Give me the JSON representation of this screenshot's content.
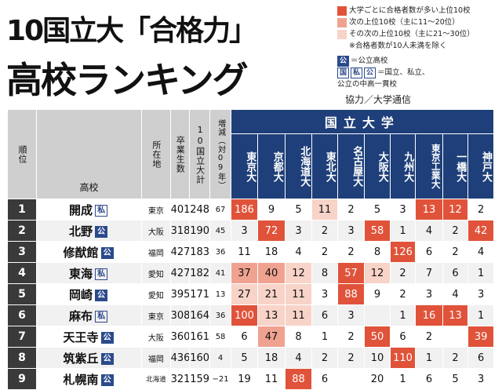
{
  "title": {
    "line1": "10国立大「合格力」",
    "line2": "高校ランキング"
  },
  "legend": {
    "items": [
      {
        "color": "#e0533a",
        "text": "大学ごとに合格者数が多い上位10校"
      },
      {
        "color": "#f0a290",
        "text": "次の上位10校（主に11～20位）"
      },
      {
        "color": "#f8d3c8",
        "text": "その次の上位10校（主に21～30位）"
      }
    ],
    "note": "※合格者数が10人未満を除く",
    "public_badge": "公",
    "public_text": "＝公立高校",
    "kok_badge": "国",
    "shi_badge": "私",
    "ko_badge": "公",
    "type_text": "＝国立、私立、",
    "type_text2": "公立の中高一貫校"
  },
  "credit": "協力／大学通信",
  "headers": {
    "rank": "順位",
    "school": "高校",
    "location": "所在地",
    "graduates": "卒業生数",
    "total": "10国立大計",
    "change": "増減（対09年）",
    "group": "国立大学",
    "universities": [
      "東京大",
      "京都大",
      "北海道大",
      "東北大",
      "名古屋大",
      "大阪大",
      "九州大",
      "東京工業大",
      "一橋大",
      "神戸大"
    ]
  },
  "rows": [
    {
      "rank": "1",
      "school": "開成",
      "type": "私",
      "location": "東京",
      "graduates": "401",
      "total": "248",
      "change": "67",
      "values": [
        "186",
        "9",
        "5",
        "11",
        "2",
        "5",
        "3",
        "13",
        "12",
        "2"
      ]
    },
    {
      "rank": "2",
      "school": "北野",
      "type": "公",
      "location": "大阪",
      "graduates": "318",
      "total": "190",
      "change": "45",
      "values": [
        "3",
        "72",
        "3",
        "2",
        "3",
        "58",
        "1",
        "4",
        "2",
        "42"
      ]
    },
    {
      "rank": "3",
      "school": "修猷館",
      "type": "公",
      "location": "福岡",
      "graduates": "427",
      "total": "183",
      "change": "36",
      "values": [
        "11",
        "18",
        "4",
        "2",
        "2",
        "8",
        "126",
        "6",
        "2",
        "4"
      ]
    },
    {
      "rank": "4",
      "school": "東海",
      "type": "私",
      "location": "愛知",
      "graduates": "427",
      "total": "182",
      "change": "41",
      "values": [
        "37",
        "40",
        "12",
        "8",
        "57",
        "12",
        "2",
        "7",
        "6",
        "1"
      ]
    },
    {
      "rank": "5",
      "school": "岡崎",
      "type": "公",
      "location": "愛知",
      "graduates": "395",
      "total": "171",
      "change": "13",
      "values": [
        "27",
        "21",
        "11",
        "3",
        "88",
        "9",
        "2",
        "3",
        "4",
        "3"
      ]
    },
    {
      "rank": "6",
      "school": "麻布",
      "type": "私",
      "location": "東京",
      "graduates": "308",
      "total": "164",
      "change": "36",
      "values": [
        "100",
        "13",
        "11",
        "6",
        "3",
        "",
        "1",
        "16",
        "13",
        "1"
      ]
    },
    {
      "rank": "7",
      "school": "天王寺",
      "type": "公",
      "location": "大阪",
      "graduates": "360",
      "total": "161",
      "change": "58",
      "values": [
        "6",
        "47",
        "8",
        "1",
        "2",
        "50",
        "6",
        "2",
        "",
        "39"
      ]
    },
    {
      "rank": "8",
      "school": "筑紫丘",
      "type": "公",
      "location": "福岡",
      "graduates": "436",
      "total": "160",
      "change": "4",
      "values": [
        "5",
        "18",
        "4",
        "2",
        "2",
        "10",
        "110",
        "1",
        "2",
        "6"
      ]
    },
    {
      "rank": "9",
      "school": "札幌南",
      "type": "公",
      "location": "北海道",
      "graduates": "321",
      "total": "159",
      "change": "−21",
      "values": [
        "19",
        "11",
        "88",
        "6",
        "",
        "20",
        "1",
        "6",
        "5",
        "3"
      ]
    }
  ],
  "highlight_levels": [
    [
      "c1",
      "",
      "",
      "c3",
      "",
      "",
      "",
      "c1",
      "c1",
      ""
    ],
    [
      "",
      "c1",
      "",
      "",
      "",
      "c1",
      "",
      "",
      "",
      "c1"
    ],
    [
      "",
      "",
      "",
      "",
      "",
      "",
      "c1",
      "",
      "",
      ""
    ],
    [
      "c2",
      "c2",
      "c3",
      "",
      "c1",
      "c3",
      "",
      "",
      "",
      ""
    ],
    [
      "c3",
      "c3",
      "c3",
      "",
      "c1",
      "",
      "",
      "",
      "",
      ""
    ],
    [
      "c1",
      "c3",
      "c3",
      "",
      "",
      "",
      "",
      "c1",
      "c1",
      ""
    ],
    [
      "",
      "c2",
      "",
      "",
      "",
      "c1",
      "",
      "",
      "",
      "c1"
    ],
    [
      "",
      "",
      "",
      "",
      "",
      "",
      "c1",
      "",
      "",
      ""
    ],
    [
      "",
      "",
      "c1",
      "",
      "",
      "",
      "",
      "",
      "",
      ""
    ]
  ]
}
